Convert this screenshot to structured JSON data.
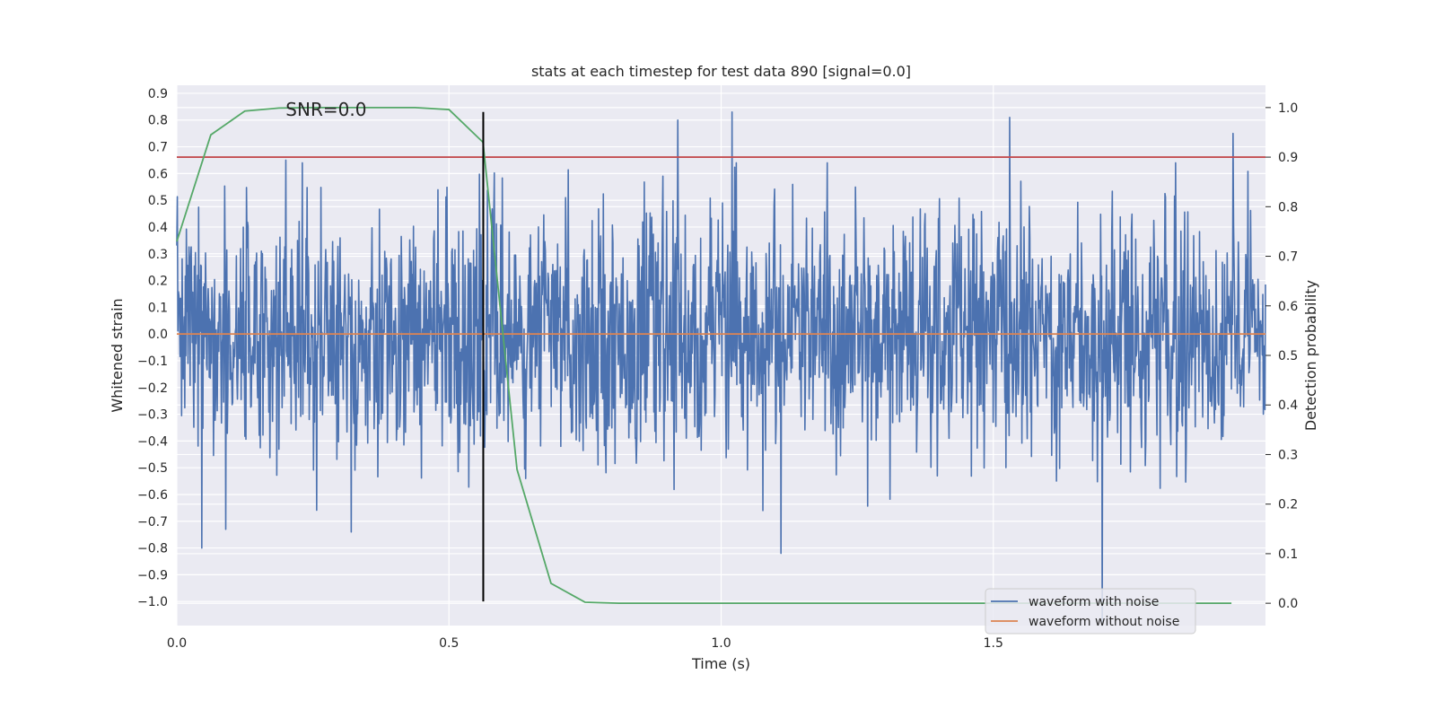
{
  "chart_data": {
    "type": "line",
    "title": "stats at each timestep for test data 890 [signal=0.0]",
    "xlabel": "Time (s)",
    "ylabel": "Whitened strain",
    "y2label": "Detection probability",
    "xlim": [
      0.0,
      2.0
    ],
    "ylim": [
      -1.09,
      0.93
    ],
    "y2lim": [
      -0.045,
      1.045
    ],
    "x_ticks": [
      0.0,
      0.5,
      1.0,
      1.5
    ],
    "x_tick_labels": [
      "0.0",
      "0.5",
      "1.0",
      "1.5"
    ],
    "y_ticks": [
      0.9,
      0.8,
      0.7,
      0.6,
      0.5,
      0.4,
      0.3,
      0.2,
      0.1,
      0.0,
      -0.1,
      -0.2,
      -0.3,
      -0.4,
      -0.5,
      -0.6,
      -0.7,
      -0.8,
      -0.9,
      -1.0
    ],
    "y_tick_labels": [
      "0.9",
      "0.8",
      "0.7",
      "0.6",
      "0.5",
      "0.4",
      "0.3",
      "0.2",
      "0.1",
      "0.0",
      "−0.1",
      "−0.2",
      "−0.3",
      "−0.4",
      "−0.5",
      "−0.6",
      "−0.7",
      "−0.8",
      "−0.9",
      "−1.0"
    ],
    "y2_ticks": [
      1.0,
      0.9,
      0.8,
      0.7,
      0.6,
      0.5,
      0.4,
      0.3,
      0.2,
      0.1,
      0.0
    ],
    "y2_tick_labels": [
      "1.0",
      "0.9",
      "0.8",
      "0.7",
      "0.6",
      "0.5",
      "0.4",
      "0.3",
      "0.2",
      "0.1",
      "0.0"
    ],
    "grid": true,
    "annotation": {
      "text": "SNR=0.0",
      "x": 0.2,
      "y": 0.84
    },
    "threshold": {
      "y2": 0.9,
      "color": "#c44e52"
    },
    "marker_time": {
      "x": 0.563,
      "y_from": -1.0,
      "y_to": 0.83,
      "color": "#000000"
    },
    "series": [
      {
        "name": "waveform with noise",
        "color": "#4c72b0",
        "axis": "left",
        "x_range": [
          0.0,
          2.0
        ],
        "n_points": 2048,
        "amplitude_std": 0.26,
        "extremes": [
          {
            "x": 0.046,
            "y": -0.8
          },
          {
            "x": 0.09,
            "y": -0.73
          },
          {
            "x": 0.32,
            "y": -0.74
          },
          {
            "x": 0.2,
            "y": 0.65
          },
          {
            "x": 0.92,
            "y": 0.8
          },
          {
            "x": 1.02,
            "y": 0.83
          },
          {
            "x": 1.11,
            "y": -0.82
          },
          {
            "x": 1.53,
            "y": 0.81
          },
          {
            "x": 1.7,
            "y": -1.09
          },
          {
            "x": 1.94,
            "y": 0.75
          }
        ]
      },
      {
        "name": "waveform without noise",
        "color": "#dd8452",
        "axis": "left",
        "x": [
          0.0,
          2.0
        ],
        "y": [
          0.0,
          0.0
        ]
      },
      {
        "name": "",
        "color": "#55a868",
        "axis": "right",
        "x": [
          0.0,
          0.0625,
          0.125,
          0.1875,
          0.25,
          0.3125,
          0.375,
          0.4375,
          0.5,
          0.5625,
          0.625,
          0.6875,
          0.75,
          0.8125,
          0.875,
          0.9375,
          1.0,
          1.0625,
          1.125,
          1.1875,
          1.25,
          1.3125,
          1.375,
          1.4375,
          1.5,
          1.5625,
          1.625,
          1.6875,
          1.75,
          1.8125,
          1.875,
          1.9375
        ],
        "y": [
          0.73,
          0.945,
          0.993,
          0.999,
          1.0,
          1.0,
          1.0,
          1.0,
          0.996,
          0.93,
          0.27,
          0.04,
          0.002,
          0.0,
          0.0,
          0.0,
          0.0,
          0.0,
          0.0,
          0.0,
          0.0,
          0.0,
          0.0,
          0.0,
          0.0,
          0.0,
          0.0,
          0.0,
          0.0,
          0.0,
          0.0,
          0.0
        ]
      }
    ],
    "legend": {
      "placement": "bottom-right",
      "entries": [
        "waveform with noise",
        "waveform without noise"
      ]
    }
  },
  "colors": {
    "plot_bg": "#eaeaf2",
    "grid": "#ffffff",
    "text": "#262626"
  }
}
